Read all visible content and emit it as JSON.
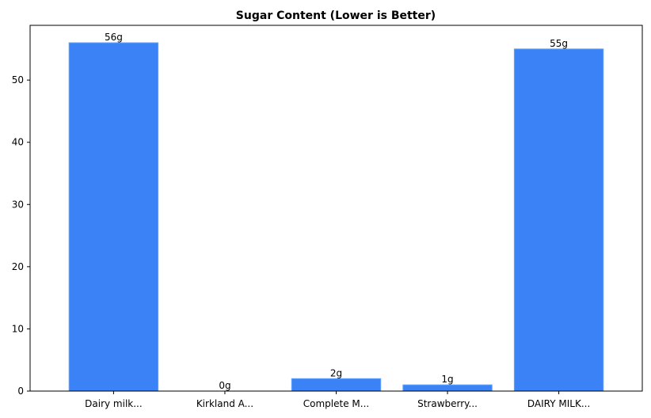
{
  "chart_data": {
    "type": "bar",
    "title": "Sugar Content (Lower is Better)",
    "xlabel": "",
    "ylabel": "",
    "categories": [
      "Dairy milk...",
      "Kirkland A...",
      "Complete M...",
      "Strawberry...",
      "DAIRY MILK..."
    ],
    "values": [
      56,
      0,
      2,
      1,
      55
    ],
    "data_labels": [
      "56g",
      "0g",
      "2g",
      "1g",
      "55g"
    ],
    "ylim": [
      0,
      58.8
    ],
    "yticks": [
      0,
      10,
      20,
      30,
      40,
      50
    ],
    "grid": false,
    "legend": "none",
    "colors": {
      "bar": "#3b82f6",
      "bar_edge": "#60a5fa"
    }
  }
}
